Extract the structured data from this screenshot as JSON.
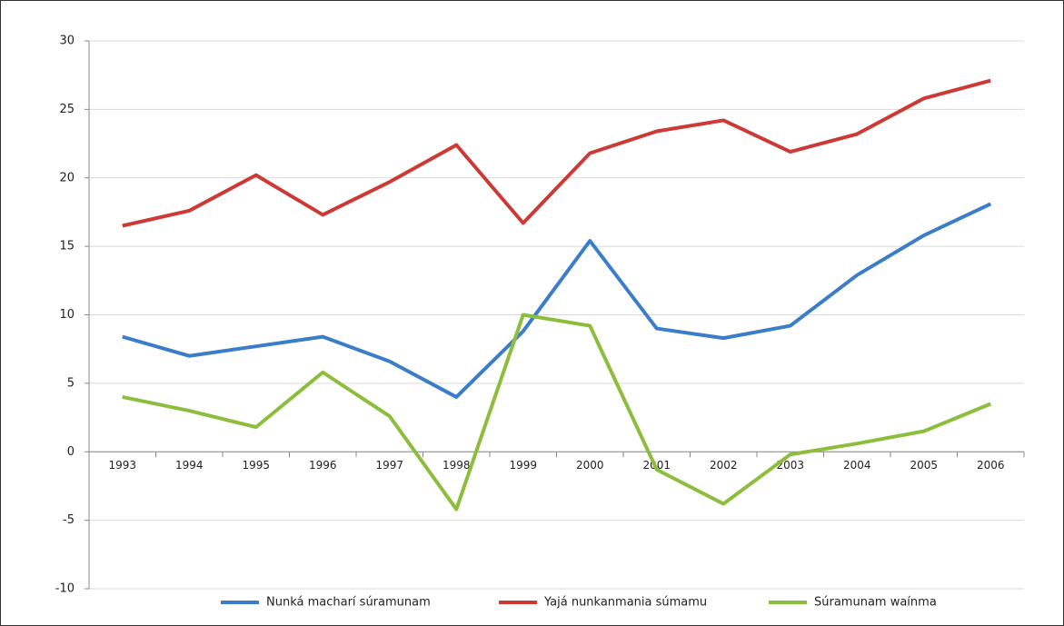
{
  "chart_data": {
    "type": "line",
    "categories": [
      "1993",
      "1994",
      "1995",
      "1996",
      "1997",
      "1998",
      "1999",
      "2000",
      "2001",
      "2002",
      "2003",
      "2004",
      "2005",
      "2006"
    ],
    "series": [
      {
        "name": "Nunká macharí súramunam",
        "color": "#3b7dc8",
        "values": [
          8.4,
          7.0,
          7.7,
          8.4,
          6.6,
          4.0,
          8.8,
          15.4,
          9.0,
          8.3,
          9.2,
          12.9,
          15.8,
          18.1
        ]
      },
      {
        "name": "Yajá nunkanmania súmamu",
        "color": "#cc3a36",
        "values": [
          16.5,
          17.6,
          20.2,
          17.3,
          19.7,
          22.4,
          16.7,
          21.8,
          23.4,
          24.2,
          21.9,
          23.2,
          25.8,
          27.1
        ]
      },
      {
        "name": "Súramunam waínma",
        "color": "#8cbd3c",
        "values": [
          4.0,
          3.0,
          1.8,
          5.8,
          2.6,
          -4.2,
          10.0,
          9.2,
          -1.3,
          -3.8,
          -0.2,
          0.6,
          1.5,
          3.5
        ]
      }
    ],
    "ylim": [
      -10,
      30
    ],
    "yticks": [
      -10,
      -5,
      0,
      5,
      10,
      15,
      20,
      25,
      30
    ],
    "grid": true,
    "legend": "bottom"
  }
}
